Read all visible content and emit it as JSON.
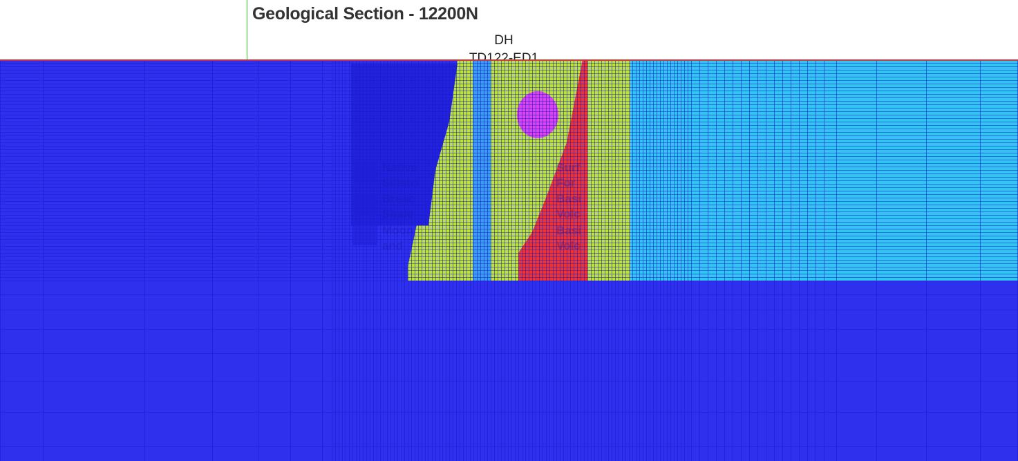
{
  "section": {
    "title": "Geological Section - 12200N",
    "drillhole_line1": "DH",
    "drillhole_line2": "TD122-ED1"
  },
  "legend": {
    "left": [
      {
        "line1": "Native",
        "line2": "Siltsto"
      },
      {
        "line1": "Breac",
        "line2": "Shale"
      },
      {
        "line1": "Moon",
        "line2": "and"
      }
    ],
    "right": [
      {
        "line1": "Surf",
        "line2": "For"
      },
      {
        "line1": "Basi",
        "line2": "Volc"
      },
      {
        "line1": "Basi",
        "line2": "Volc"
      }
    ]
  },
  "colors": {
    "mesh_blue": "#2f2fee",
    "mesh_line": "#1a1acc",
    "cyan": "#33c4f2",
    "yellow_green": "#bde33a",
    "red": "#ee3333",
    "magenta": "#dd44ee",
    "light_blue_strip": "#3a9ef0",
    "dark_blue_block": "#2222dd"
  }
}
